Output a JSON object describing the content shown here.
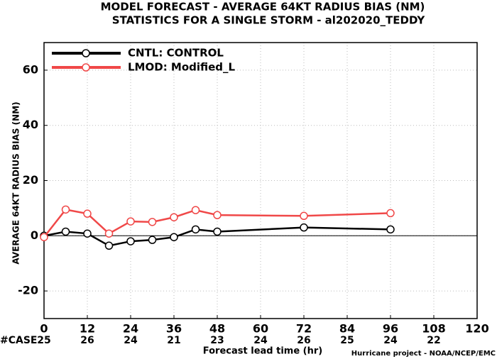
{
  "chart_data": {
    "type": "line",
    "title": "MODEL FORECAST - AVERAGE 64KT RADIUS BIAS (NM)",
    "subtitle": "STATISTICS FOR A SINGLE STORM - al202020_TEDDY",
    "x_label": "Forecast lead time (hr)",
    "y_label": "AVERAGE 64KT RADIUS BIAS (NM)",
    "credit": "Hurricane project - NOAA/NCEP/EMC",
    "x": [
      0,
      6,
      12,
      18,
      24,
      30,
      36,
      42,
      48,
      72,
      96
    ],
    "series": [
      {
        "name": "CNTL: CONTROL",
        "color": "#000000",
        "values": [
          0,
          1.5,
          0.8,
          -3.6,
          -2,
          -1.5,
          -0.5,
          2.3,
          1.5,
          3,
          2.3
        ]
      },
      {
        "name": "LMOD: Modified_L",
        "color": "#f04848",
        "values": [
          -0.5,
          9.5,
          8,
          0.8,
          5.2,
          5,
          6.7,
          9.3,
          7.5,
          7.2,
          8.2
        ]
      }
    ],
    "xlim": [
      0,
      120
    ],
    "xticks": [
      0,
      12,
      24,
      36,
      48,
      60,
      72,
      84,
      96,
      108,
      120
    ],
    "ylim": [
      -30,
      70
    ],
    "yticks": [
      -20,
      0,
      20,
      40,
      60
    ],
    "grid": true,
    "legend": "upper-left",
    "cases": {
      "label": "#CASE",
      "color": "#22c4c4",
      "x": [
        0,
        12,
        24,
        36,
        48,
        60,
        72,
        84,
        96,
        108
      ],
      "values": [
        25,
        26,
        24,
        21,
        23,
        24,
        26,
        25,
        24,
        22
      ]
    }
  }
}
